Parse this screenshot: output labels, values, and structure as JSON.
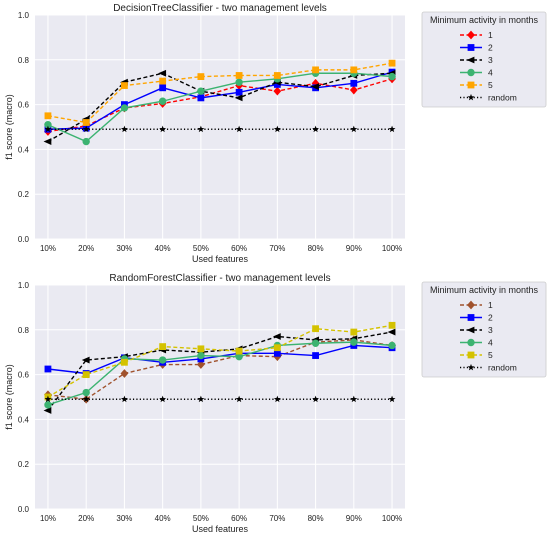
{
  "chart_data": [
    {
      "type": "line",
      "title": "DecisionTreeClassifier - two management levels",
      "xlabel": "Used features",
      "ylabel": "f1 score (macro)",
      "categories": [
        "10%",
        "20%",
        "30%",
        "40%",
        "50%",
        "60%",
        "70%",
        "80%",
        "90%",
        "100%"
      ],
      "ylim": [
        0,
        1.0
      ],
      "yticks": [
        "0.0",
        "0.2",
        "0.4",
        "0.6",
        "0.8",
        "1.0"
      ],
      "grid": true,
      "legend": {
        "title": "Minimum activity in months",
        "placement": "outside-right"
      },
      "series": [
        {
          "name": "1",
          "color": "#ff0000",
          "marker": "diamond",
          "dash": "dashed",
          "values": [
            0.48,
            0.505,
            0.585,
            0.605,
            0.635,
            0.685,
            0.66,
            0.695,
            0.665,
            0.715
          ]
        },
        {
          "name": "2",
          "color": "#0000ff",
          "marker": "square",
          "dash": "solid",
          "values": [
            0.49,
            0.495,
            0.6,
            0.675,
            0.63,
            0.655,
            0.69,
            0.675,
            0.695,
            0.745
          ]
        },
        {
          "name": "3",
          "color": "#000000",
          "marker": "triangle-left",
          "dash": "dashed",
          "values": [
            0.435,
            0.535,
            0.7,
            0.74,
            0.66,
            0.63,
            0.7,
            0.68,
            0.73,
            0.74
          ]
        },
        {
          "name": "4",
          "color": "#3cb371",
          "marker": "circle",
          "dash": "solid",
          "values": [
            0.51,
            0.435,
            0.585,
            0.615,
            0.66,
            0.7,
            0.715,
            0.74,
            0.74,
            0.725
          ]
        },
        {
          "name": "5",
          "color": "#ffa500",
          "marker": "square",
          "dash": "dashed",
          "values": [
            0.55,
            0.52,
            0.685,
            0.705,
            0.725,
            0.73,
            0.73,
            0.755,
            0.755,
            0.785
          ]
        },
        {
          "name": "random",
          "color": "#000000",
          "marker": "star",
          "dash": "dotted",
          "values": [
            0.49,
            0.49,
            0.49,
            0.49,
            0.49,
            0.49,
            0.49,
            0.49,
            0.49,
            0.49
          ]
        }
      ]
    },
    {
      "type": "line",
      "title": "RandomForestClassifier - two management levels",
      "xlabel": "Used features",
      "ylabel": "f1 score (macro)",
      "categories": [
        "10%",
        "20%",
        "30%",
        "40%",
        "50%",
        "60%",
        "70%",
        "80%",
        "90%",
        "100%"
      ],
      "ylim": [
        0,
        1.0
      ],
      "yticks": [
        "0.0",
        "0.2",
        "0.4",
        "0.6",
        "0.8",
        "1.0"
      ],
      "grid": true,
      "legend": {
        "title": "Minimum activity in months",
        "placement": "outside-right"
      },
      "series": [
        {
          "name": "1",
          "color": "#a0522d",
          "marker": "diamond",
          "dash": "dashed",
          "values": [
            0.51,
            0.49,
            0.605,
            0.645,
            0.645,
            0.685,
            0.68,
            0.745,
            0.755,
            0.73
          ]
        },
        {
          "name": "2",
          "color": "#0000ff",
          "marker": "square",
          "dash": "solid",
          "values": [
            0.625,
            0.605,
            0.675,
            0.655,
            0.67,
            0.695,
            0.695,
            0.685,
            0.73,
            0.72
          ]
        },
        {
          "name": "3",
          "color": "#000000",
          "marker": "triangle-left",
          "dash": "dashed",
          "values": [
            0.44,
            0.665,
            0.68,
            0.71,
            0.7,
            0.715,
            0.77,
            0.755,
            0.76,
            0.79
          ]
        },
        {
          "name": "4",
          "color": "#3cb371",
          "marker": "circle",
          "dash": "solid",
          "values": [
            0.465,
            0.52,
            0.67,
            0.665,
            0.685,
            0.68,
            0.73,
            0.74,
            0.745,
            0.73
          ]
        },
        {
          "name": "5",
          "color": "#d4c200",
          "marker": "square",
          "dash": "dashed",
          "values": [
            0.5,
            0.6,
            0.655,
            0.725,
            0.715,
            0.705,
            0.72,
            0.805,
            0.79,
            0.82
          ]
        },
        {
          "name": "random",
          "color": "#000000",
          "marker": "star",
          "dash": "dotted",
          "values": [
            0.49,
            0.49,
            0.49,
            0.49,
            0.49,
            0.49,
            0.49,
            0.49,
            0.49,
            0.49
          ]
        }
      ]
    }
  ]
}
